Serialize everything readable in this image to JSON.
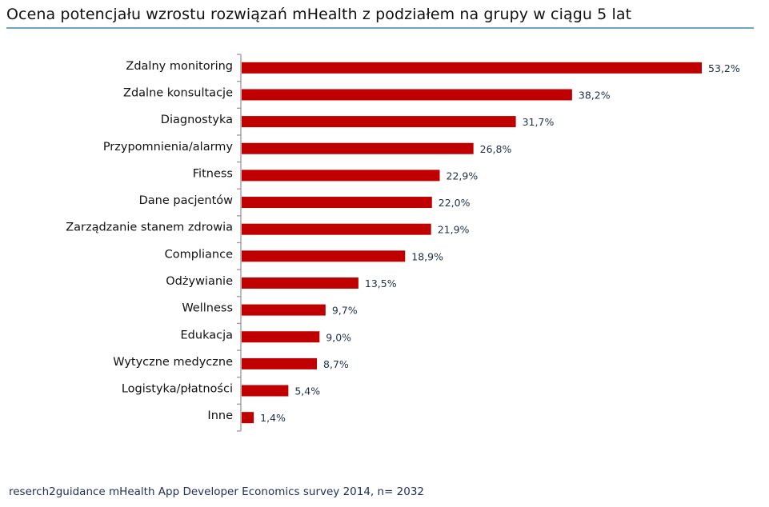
{
  "title": "Ocena potencjału wzrostu rozwiązań mHealth z podziałem na grupy w ciągu 5 lat",
  "source": "reserch2guidance mHealth App Developer Economics survey 2014, n= 2032",
  "chart_data": {
    "type": "bar",
    "orientation": "horizontal",
    "title": "Ocena potencjału wzrostu rozwiązań mHealth z podziałem na grupy w ciągu 5 lat",
    "categories": [
      "Zdalny monitoring",
      "Zdalne konsultacje",
      "Diagnostyka",
      "Przypomnienia/alarmy",
      "Fitness",
      "Dane pacjentów",
      "Zarządzanie stanem zdrowia",
      "Compliance",
      "Odżywianie",
      "Wellness",
      "Edukacja",
      "Wytyczne medyczne",
      "Logistyka/płatności",
      "Inne"
    ],
    "values": [
      53.2,
      38.2,
      31.7,
      26.8,
      22.9,
      22.0,
      21.9,
      18.9,
      13.5,
      9.7,
      9.0,
      8.7,
      5.4,
      1.4
    ],
    "labels": [
      "53,2%",
      "38,2%",
      "31,7%",
      "26,8%",
      "22,9%",
      "22,0%",
      "21,9%",
      "18,9%",
      "13,5%",
      "9,7%",
      "9,0%",
      "8,7%",
      "5,4%",
      "1,4%"
    ],
    "unit": "%",
    "xlim": [
      0,
      53.2
    ],
    "grid": false,
    "legend": "none",
    "bar_color": "#c00000",
    "xlabel": "",
    "ylabel": ""
  }
}
